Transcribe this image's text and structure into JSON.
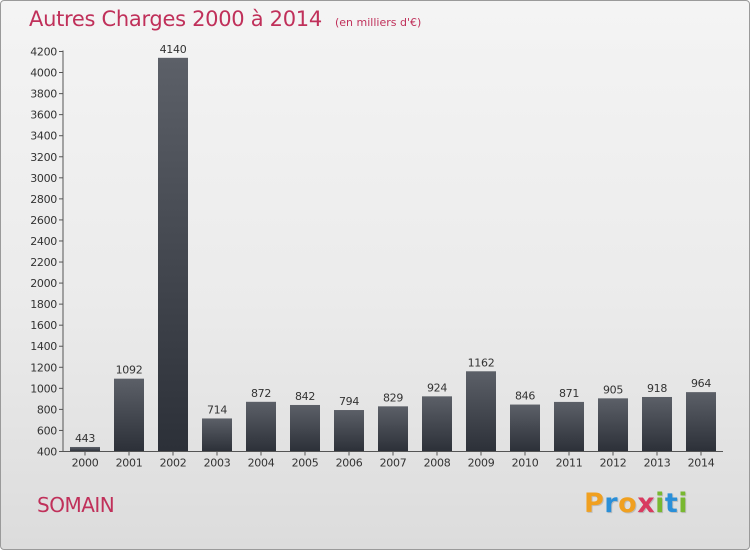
{
  "chart_data": {
    "type": "bar",
    "title": "Autres Charges 2000 à 2014",
    "unit_note": "(en milliers d'€)",
    "categories": [
      "2000",
      "2001",
      "2002",
      "2003",
      "2004",
      "2005",
      "2006",
      "2007",
      "2008",
      "2009",
      "2010",
      "2011",
      "2012",
      "2013",
      "2014"
    ],
    "values": [
      443,
      1092,
      4140,
      714,
      872,
      842,
      794,
      829,
      924,
      1162,
      846,
      871,
      905,
      918,
      964
    ],
    "ylim": [
      400,
      4200
    ],
    "yticks": [
      400,
      600,
      800,
      1000,
      1200,
      1400,
      1600,
      1800,
      2000,
      2200,
      2400,
      2600,
      2800,
      3000,
      3200,
      3400,
      3600,
      3800,
      4000,
      4200
    ],
    "grid": false,
    "bar_color_top": "#5c6068",
    "bar_color_bottom": "#2c3038"
  },
  "footer": {
    "city": "SOMAIN",
    "logo_text": "Proxiti",
    "logo_letters": [
      {
        "ch": "P",
        "color": "#f0a020"
      },
      {
        "ch": "r",
        "color": "#2a8fd8"
      },
      {
        "ch": "o",
        "color": "#f0a020"
      },
      {
        "ch": "x",
        "color": "#d83a60"
      },
      {
        "ch": "i",
        "color": "#78b830"
      },
      {
        "ch": "t",
        "color": "#2a8fd8"
      },
      {
        "ch": "i",
        "color": "#78b830"
      }
    ]
  },
  "colors": {
    "accent": "#c0305a",
    "axis": "#555555"
  }
}
